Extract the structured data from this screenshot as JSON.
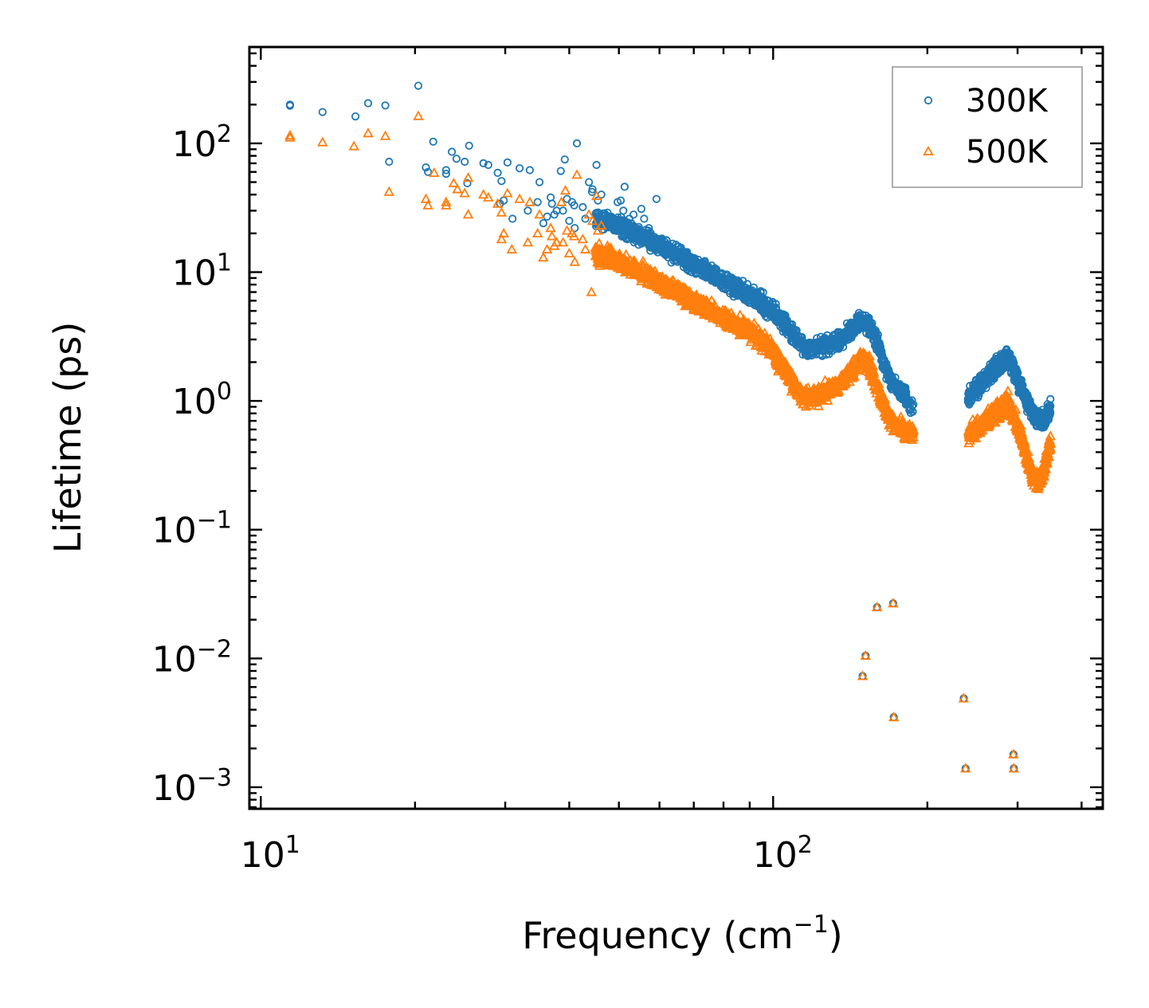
{
  "chart_data": {
    "type": "scatter",
    "title": "",
    "xlabel": "Frequency (cm",
    "xlabel_sup": "−1",
    "xlabel_close": ")",
    "ylabel": "Lifetime (ps)",
    "xscale": "log",
    "yscale": "log",
    "xlim": [
      9.5,
      440
    ],
    "ylim": [
      0.00068,
      560
    ],
    "x_ticks": [
      {
        "value": 10,
        "base": "10",
        "exp": "1"
      },
      {
        "value": 100,
        "base": "10",
        "exp": "2"
      }
    ],
    "y_ticks": [
      {
        "value": 0.001,
        "base": "10",
        "exp": "−3"
      },
      {
        "value": 0.01,
        "base": "10",
        "exp": "−2"
      },
      {
        "value": 0.1,
        "base": "10",
        "exp": "−1"
      },
      {
        "value": 1,
        "base": "10",
        "exp": "0"
      },
      {
        "value": 10,
        "base": "10",
        "exp": "1"
      },
      {
        "value": 100,
        "base": "10",
        "exp": "2"
      }
    ],
    "legend_position": "top-right",
    "series": [
      {
        "name": "300K",
        "marker": "circle",
        "color": "#1f77b4",
        "points": [
          [
            11.4,
            200
          ],
          [
            11.4,
            196
          ],
          [
            13.2,
            175
          ],
          [
            15.3,
            162
          ],
          [
            16.2,
            205
          ],
          [
            17.5,
            197
          ],
          [
            17.8,
            72
          ],
          [
            20.3,
            280
          ],
          [
            21.0,
            65
          ],
          [
            21.2,
            60
          ],
          [
            21.7,
            103
          ],
          [
            23.0,
            62
          ],
          [
            23.0,
            58
          ],
          [
            23.6,
            86
          ],
          [
            24.1,
            76
          ],
          [
            25.0,
            72
          ],
          [
            25.5,
            96
          ],
          [
            25.3,
            49
          ],
          [
            27.2,
            70
          ],
          [
            27.8,
            68
          ],
          [
            29.0,
            59
          ],
          [
            29.5,
            51
          ],
          [
            30.3,
            71
          ],
          [
            31.0,
            26
          ],
          [
            29.8,
            36
          ],
          [
            29.3,
            34
          ],
          [
            32.0,
            64
          ],
          [
            33.5,
            62
          ],
          [
            33.2,
            30
          ],
          [
            34.7,
            35
          ],
          [
            35.0,
            50
          ],
          [
            35.6,
            24
          ],
          [
            36.2,
            27
          ],
          [
            36.8,
            38
          ],
          [
            37.0,
            34
          ],
          [
            37.4,
            28
          ],
          [
            37.8,
            30
          ],
          [
            38.5,
            61
          ],
          [
            38.9,
            30
          ],
          [
            39.2,
            75
          ],
          [
            39.6,
            37
          ],
          [
            40.0,
            25
          ],
          [
            40.5,
            35
          ],
          [
            40.9,
            33
          ],
          [
            41.4,
            100
          ],
          [
            41.0,
            22
          ],
          [
            42.5,
            32
          ],
          [
            43.0,
            26
          ],
          [
            43.7,
            50
          ],
          [
            44.3,
            42
          ],
          [
            44.4,
            44
          ],
          [
            45.2,
            68
          ],
          [
            45.5,
            36
          ],
          [
            46.2,
            40
          ],
          [
            47.5,
            29
          ],
          [
            48.3,
            27
          ],
          [
            49.7,
            35
          ],
          [
            50.4,
            36
          ],
          [
            51.3,
            46
          ],
          [
            51.0,
            30
          ],
          [
            52.4,
            26
          ],
          [
            53.4,
            28
          ],
          [
            55.3,
            31
          ],
          [
            56.0,
            26
          ],
          [
            57.2,
            22
          ],
          [
            59.2,
            37
          ],
          [
            60.4,
            18
          ]
        ],
        "trend": [
          [
            45,
            26
          ],
          [
            50,
            23
          ],
          [
            55,
            19
          ],
          [
            60,
            16
          ],
          [
            65,
            13.5
          ],
          [
            70,
            11.5
          ],
          [
            75,
            9.8
          ],
          [
            80,
            8.4
          ],
          [
            85,
            7.4
          ],
          [
            90,
            6.6
          ],
          [
            95,
            5.8
          ],
          [
            100,
            5.0
          ],
          [
            105,
            4.0
          ],
          [
            110,
            3.1
          ],
          [
            115,
            2.6
          ],
          [
            120,
            2.6
          ],
          [
            128,
            2.7
          ],
          [
            135,
            3.0
          ],
          [
            142,
            3.6
          ],
          [
            150,
            4.3
          ],
          [
            155,
            3.8
          ],
          [
            160,
            2.8
          ],
          [
            165,
            1.9
          ],
          [
            170,
            1.4
          ],
          [
            175,
            1.25
          ],
          [
            180,
            1.1
          ],
          [
            184,
            0.95
          ],
          [
            188,
            0.88
          ]
        ],
        "trend2": [
          [
            240,
            1.05
          ],
          [
            248,
            1.2
          ],
          [
            256,
            1.4
          ],
          [
            264,
            1.6
          ],
          [
            272,
            1.8
          ],
          [
            280,
            2.0
          ],
          [
            285,
            2.3
          ],
          [
            290,
            2.0
          ],
          [
            298,
            1.6
          ],
          [
            306,
            1.2
          ],
          [
            314,
            0.95
          ],
          [
            322,
            0.8
          ],
          [
            330,
            0.72
          ],
          [
            338,
            0.7
          ],
          [
            344,
            0.8
          ],
          [
            348,
            0.9
          ]
        ],
        "outliers": [
          [
            149.5,
            0.0073
          ],
          [
            151.5,
            0.0105
          ],
          [
            159.5,
            0.025
          ],
          [
            171.5,
            0.0268
          ],
          [
            172.0,
            0.0035
          ],
          [
            235.5,
            0.0049
          ],
          [
            237.5,
            0.0014
          ],
          [
            294.5,
            0.0018
          ],
          [
            295.0,
            0.0014
          ]
        ]
      },
      {
        "name": "500K",
        "marker": "triangle",
        "color": "#ff7f0e",
        "points": [
          [
            11.4,
            115
          ],
          [
            11.4,
            111
          ],
          [
            13.2,
            102
          ],
          [
            15.2,
            95
          ],
          [
            16.2,
            120
          ],
          [
            17.5,
            114
          ],
          [
            17.8,
            42
          ],
          [
            20.3,
            163
          ],
          [
            21.0,
            37
          ],
          [
            21.2,
            33
          ],
          [
            21.8,
            59
          ],
          [
            23.0,
            35
          ],
          [
            23.0,
            33
          ],
          [
            23.8,
            49
          ],
          [
            24.2,
            44
          ],
          [
            25.0,
            41
          ],
          [
            25.4,
            54
          ],
          [
            25.4,
            28
          ],
          [
            27.2,
            40
          ],
          [
            27.8,
            38
          ],
          [
            29.0,
            34
          ],
          [
            29.5,
            29
          ],
          [
            30.3,
            41
          ],
          [
            30.9,
            15
          ],
          [
            29.8,
            20
          ],
          [
            29.5,
            18
          ],
          [
            32.0,
            37
          ],
          [
            33.5,
            35
          ],
          [
            33.2,
            17
          ],
          [
            34.7,
            20
          ],
          [
            35.0,
            28
          ],
          [
            35.6,
            13
          ],
          [
            36.2,
            15
          ],
          [
            36.8,
            22
          ],
          [
            37.0,
            19
          ],
          [
            37.4,
            16
          ],
          [
            37.8,
            17
          ],
          [
            38.6,
            35
          ],
          [
            38.9,
            17
          ],
          [
            39.3,
            43
          ],
          [
            39.6,
            21
          ],
          [
            40.0,
            14
          ],
          [
            40.5,
            20
          ],
          [
            40.9,
            19
          ],
          [
            41.4,
            57
          ],
          [
            41.0,
            12
          ],
          [
            42.5,
            18
          ],
          [
            43.0,
            15
          ],
          [
            43.7,
            28
          ],
          [
            44.2,
            7
          ],
          [
            44.4,
            25
          ],
          [
            45.2,
            39
          ],
          [
            45.5,
            21
          ],
          [
            46.2,
            23
          ],
          [
            47.5,
            16
          ],
          [
            48.3,
            15
          ]
        ],
        "trend": [
          [
            45,
            14
          ],
          [
            50,
            12
          ],
          [
            55,
            10
          ],
          [
            60,
            8.3
          ],
          [
            65,
            7.0
          ],
          [
            70,
            5.9
          ],
          [
            75,
            5.1
          ],
          [
            80,
            4.5
          ],
          [
            85,
            4.0
          ],
          [
            90,
            3.5
          ],
          [
            95,
            3.0
          ],
          [
            100,
            2.4
          ],
          [
            105,
            1.8
          ],
          [
            110,
            1.3
          ],
          [
            115,
            1.1
          ],
          [
            120,
            1.1
          ],
          [
            128,
            1.2
          ],
          [
            135,
            1.4
          ],
          [
            142,
            1.7
          ],
          [
            150,
            2.1
          ],
          [
            155,
            1.8
          ],
          [
            160,
            1.25
          ],
          [
            165,
            0.85
          ],
          [
            170,
            0.7
          ],
          [
            175,
            0.65
          ],
          [
            180,
            0.6
          ],
          [
            184,
            0.57
          ],
          [
            188,
            0.55
          ]
        ],
        "trend2": [
          [
            240,
            0.55
          ],
          [
            248,
            0.6
          ],
          [
            256,
            0.68
          ],
          [
            264,
            0.75
          ],
          [
            272,
            0.82
          ],
          [
            280,
            0.9
          ],
          [
            285,
            1.0
          ],
          [
            290,
            0.9
          ],
          [
            298,
            0.7
          ],
          [
            306,
            0.5
          ],
          [
            314,
            0.34
          ],
          [
            322,
            0.25
          ],
          [
            330,
            0.24
          ],
          [
            338,
            0.3
          ],
          [
            344,
            0.4
          ],
          [
            348,
            0.5
          ]
        ],
        "outliers": [
          [
            149.5,
            0.0073
          ],
          [
            151.5,
            0.0105
          ],
          [
            159.5,
            0.025
          ],
          [
            171.5,
            0.0268
          ],
          [
            172.0,
            0.0035
          ],
          [
            235.5,
            0.0049
          ],
          [
            237.5,
            0.0014
          ],
          [
            294.5,
            0.0018
          ],
          [
            295.0,
            0.0014
          ]
        ]
      }
    ]
  }
}
